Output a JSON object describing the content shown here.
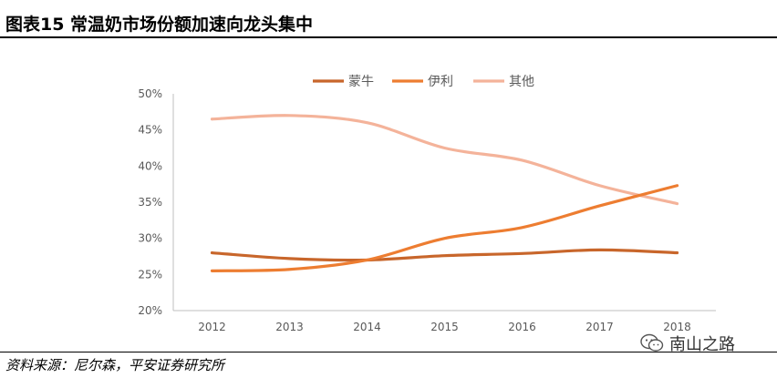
{
  "header": {
    "title": "图表15    常温奶市场份额加速向龙头集中"
  },
  "footer": {
    "source": "资料来源：尼尔森，平安证券研究所"
  },
  "watermark": {
    "text": "南山之路",
    "icon": "wechat-icon"
  },
  "chart_data": {
    "type": "line",
    "title": "",
    "xlabel": "",
    "ylabel": "",
    "x": [
      "2012",
      "2013",
      "2014",
      "2015",
      "2016",
      "2017",
      "2018"
    ],
    "ylim": [
      20,
      50
    ],
    "yticks": [
      "20%",
      "25%",
      "30%",
      "35%",
      "40%",
      "45%",
      "50%"
    ],
    "grid": false,
    "legend_position": "top-center",
    "series": [
      {
        "name": "蒙牛",
        "color": "#C8662B",
        "values": [
          28.0,
          27.2,
          27.0,
          27.6,
          27.9,
          28.4,
          28.0
        ]
      },
      {
        "name": "伊利",
        "color": "#ED7D31",
        "values": [
          25.5,
          25.7,
          27.0,
          30.0,
          31.5,
          34.5,
          37.3
        ]
      },
      {
        "name": "其他",
        "color": "#F4B39A",
        "values": [
          46.5,
          47.0,
          46.0,
          42.5,
          40.8,
          37.3,
          34.8
        ]
      }
    ]
  }
}
